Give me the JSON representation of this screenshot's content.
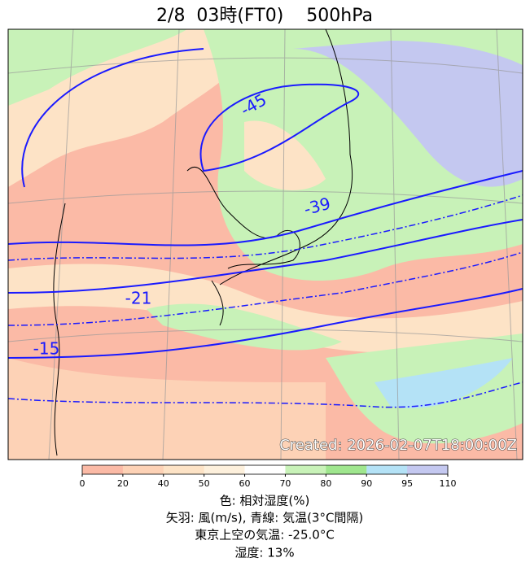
{
  "header": {
    "title": "2/8  03時(FT0)    500hPa"
  },
  "map": {
    "contour_labels": [
      "-45",
      "-39",
      "-21",
      "-15"
    ],
    "created": "Created: 2026-02-07T18:00:00Z"
  },
  "colorbar": {
    "ticks": [
      0,
      20,
      40,
      50,
      60,
      70,
      80,
      90,
      95,
      110
    ],
    "colors": [
      "#fbbaa6",
      "#fdd2b6",
      "#fde3c6",
      "#fdf0dc",
      "#ffffff",
      "#c8f2b8",
      "#9fe68e",
      "#b4e2f6",
      "#c4c8f0"
    ]
  },
  "caption": {
    "lines": [
      "色: 相対湿度(%)",
      "矢羽: 風(m/s),  青線: 気温(3°C間隔)",
      "東京上空の気温: -25.0°C",
      "湿度: 13%"
    ]
  }
}
